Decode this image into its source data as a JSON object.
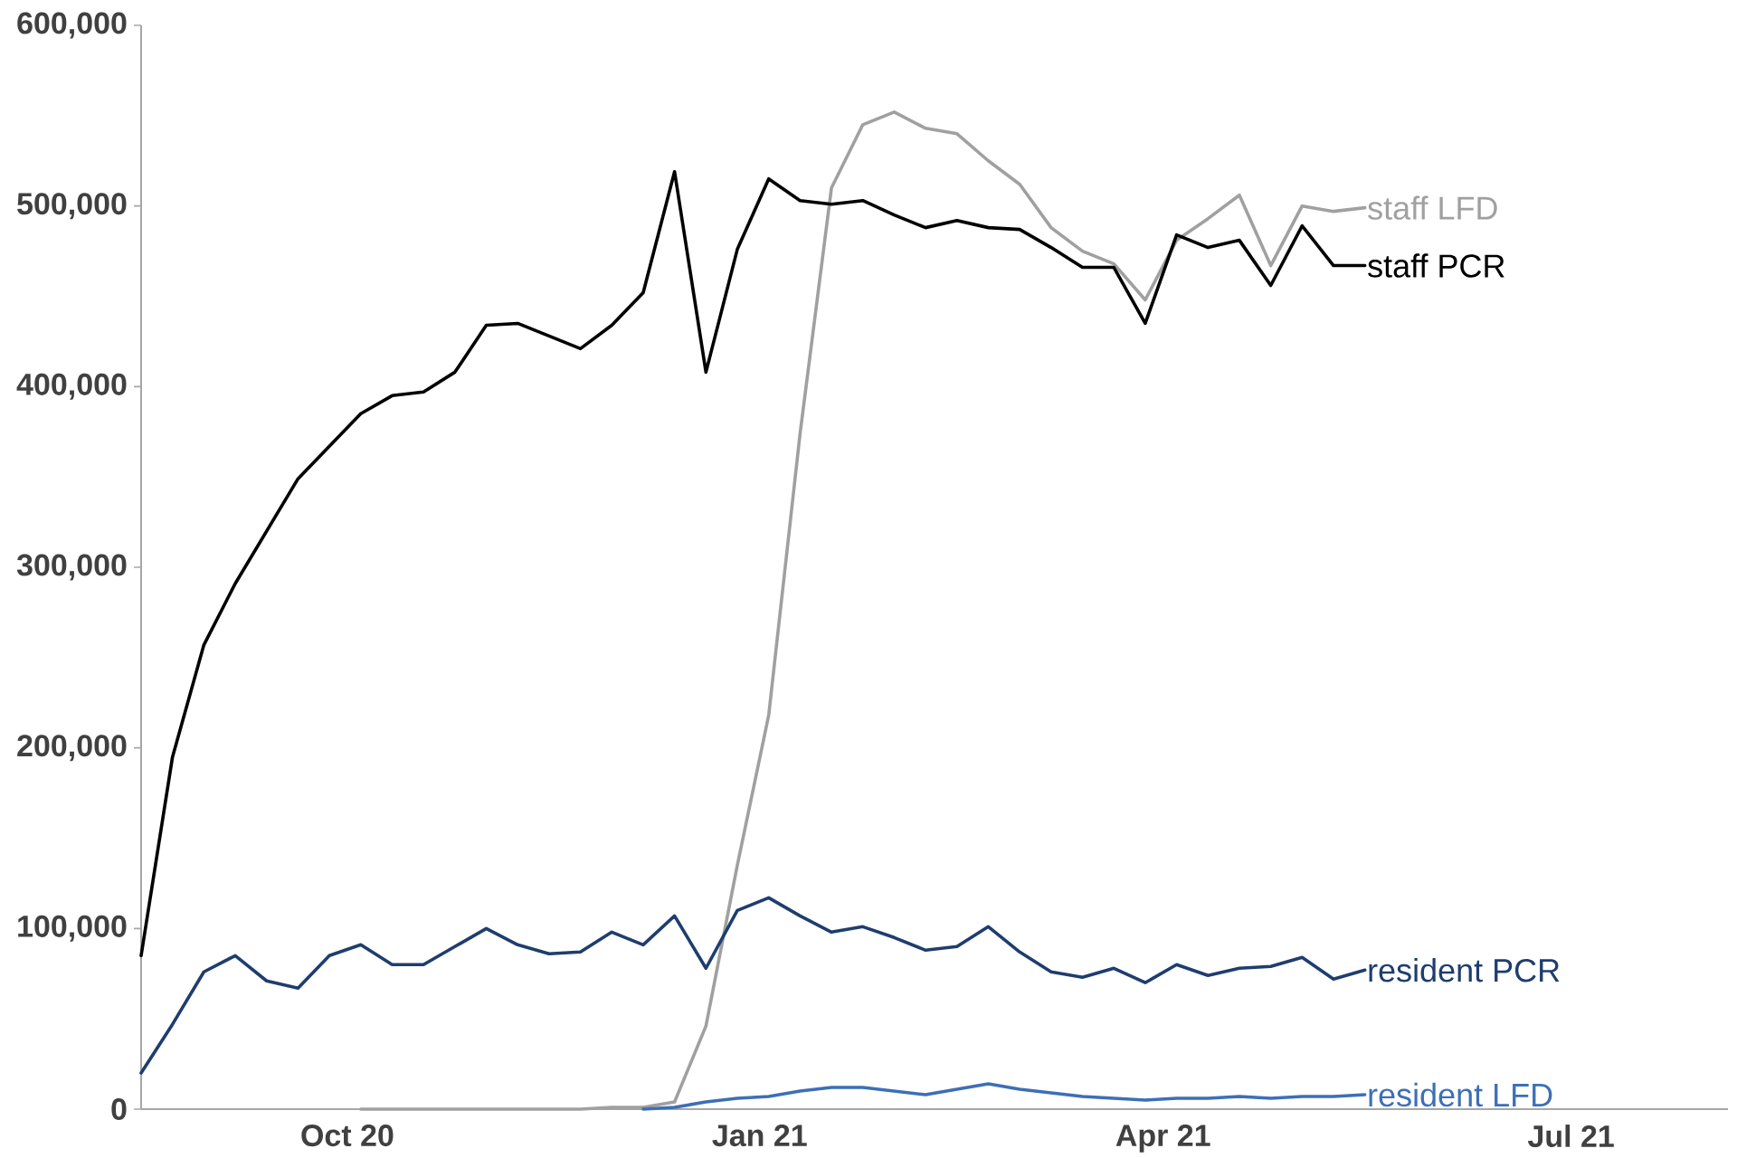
{
  "chart_data": {
    "type": "line",
    "x": [
      "2020-08-16",
      "2020-08-23",
      "2020-08-30",
      "2020-09-06",
      "2020-09-13",
      "2020-09-20",
      "2020-09-27",
      "2020-10-04",
      "2020-10-11",
      "2020-10-18",
      "2020-10-25",
      "2020-11-01",
      "2020-11-08",
      "2020-11-15",
      "2020-11-22",
      "2020-11-29",
      "2020-12-06",
      "2020-12-13",
      "2020-12-20",
      "2020-12-27",
      "2021-01-03",
      "2021-01-10",
      "2021-01-17",
      "2021-01-24",
      "2021-01-31",
      "2021-02-07",
      "2021-02-14",
      "2021-02-21",
      "2021-02-28",
      "2021-03-07",
      "2021-03-14",
      "2021-03-21",
      "2021-03-28",
      "2021-04-04",
      "2021-04-11",
      "2021-04-18",
      "2021-04-25",
      "2021-05-02",
      "2021-05-09",
      "2021-05-16"
    ],
    "series": [
      {
        "name": "staff LFD",
        "color": "#a0a0a0",
        "values": [
          null,
          null,
          null,
          null,
          null,
          null,
          null,
          0,
          0,
          0,
          0,
          0,
          0,
          0,
          0,
          1000,
          1000,
          4000,
          46000,
          135000,
          218000,
          374000,
          510000,
          545000,
          552000,
          543000,
          540000,
          525000,
          512000,
          488000,
          475000,
          468000,
          448000,
          481000,
          493000,
          506000,
          467000,
          500000,
          497000,
          499000
        ]
      },
      {
        "name": "staff PCR",
        "color": "#000000",
        "values": [
          85000,
          195000,
          257000,
          291000,
          320000,
          349000,
          367000,
          385000,
          395000,
          397000,
          408000,
          434000,
          435000,
          428000,
          421000,
          434000,
          452000,
          519000,
          408000,
          476000,
          515000,
          503000,
          501000,
          503000,
          495000,
          488000,
          492000,
          488000,
          487000,
          477000,
          466000,
          466000,
          435000,
          484000,
          477000,
          481000,
          456000,
          489000,
          467000,
          467000
        ]
      },
      {
        "name": "resident PCR",
        "color": "#1f3d6e",
        "values": [
          20000,
          47000,
          76000,
          85000,
          71000,
          67000,
          85000,
          91000,
          80000,
          80000,
          90000,
          100000,
          91000,
          86000,
          87000,
          98000,
          91000,
          107000,
          78000,
          110000,
          117000,
          107000,
          98000,
          101000,
          95000,
          88000,
          90000,
          101000,
          87000,
          76000,
          73000,
          78000,
          70000,
          80000,
          74000,
          78000,
          79000,
          84000,
          72000,
          77000
        ]
      },
      {
        "name": "resident LFD",
        "color": "#3d6fb6",
        "values": [
          null,
          null,
          null,
          null,
          null,
          null,
          null,
          null,
          null,
          null,
          null,
          null,
          null,
          null,
          null,
          null,
          0,
          1000,
          4000,
          6000,
          7000,
          10000,
          12000,
          12000,
          10000,
          8000,
          11000,
          14000,
          11000,
          9000,
          7000,
          6000,
          5000,
          6000,
          6000,
          7000,
          6000,
          7000,
          7000,
          8000
        ]
      }
    ],
    "xlim": [
      "2020-08-16",
      "2021-08-05"
    ],
    "xticks": [
      {
        "value": "2020-10-01",
        "label": "Oct 20"
      },
      {
        "value": "2021-01-01",
        "label": "Jan 21"
      },
      {
        "value": "2021-04-01",
        "label": "Apr 21"
      },
      {
        "value": "2021-07-01",
        "label": "Jul 21"
      }
    ],
    "ylim": [
      0,
      600000
    ],
    "yticks": [
      0,
      {
        "value": 100000,
        "label": "100,000"
      },
      {
        "value": 200000,
        "label": "200,000"
      },
      {
        "value": 300000,
        "label": "300,000"
      },
      {
        "value": 400000,
        "label": "400,000"
      },
      {
        "value": 500000,
        "label": "500,000"
      },
      {
        "value": 600000,
        "label": "600,000"
      }
    ]
  }
}
